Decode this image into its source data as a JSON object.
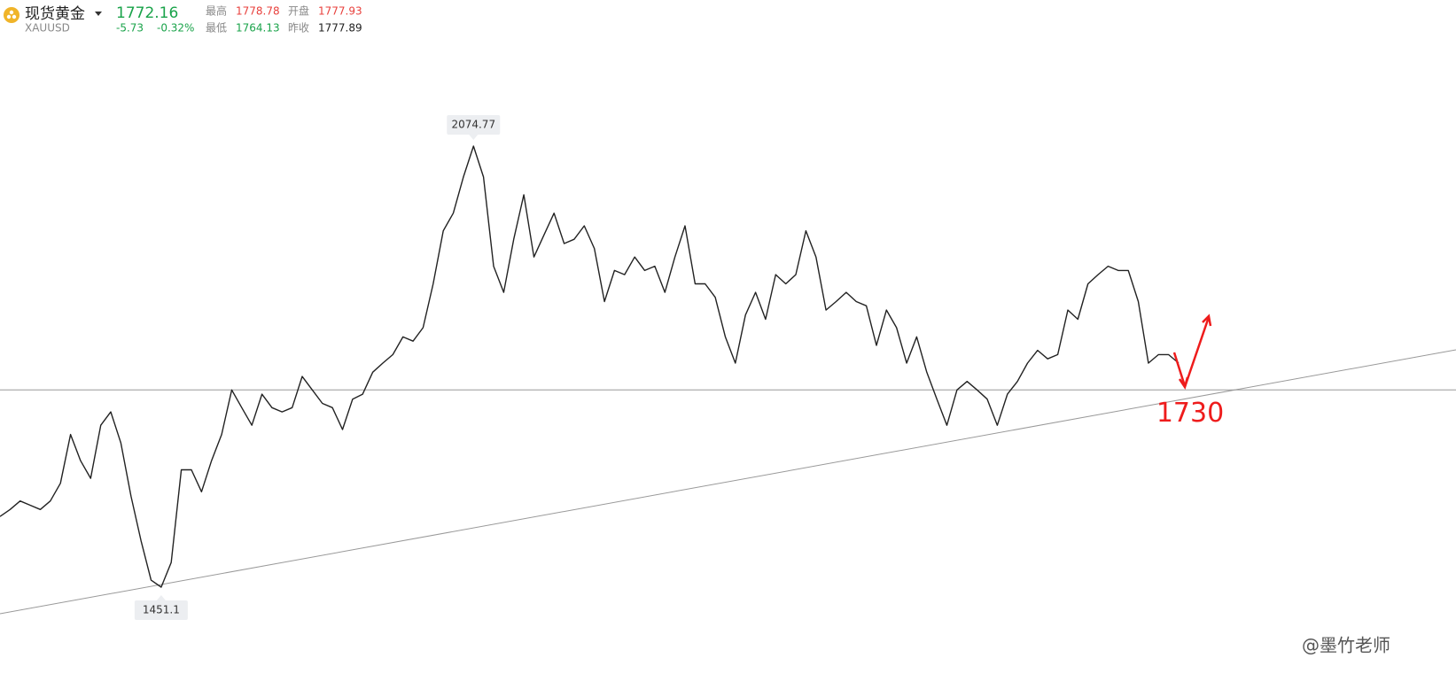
{
  "header": {
    "name": "现货黄金",
    "symbol": "XAUUSD",
    "price": "1772.16",
    "change": "-5.73",
    "change_pct": "-0.32%",
    "high_label": "最高",
    "high": "1778.78",
    "open_label": "开盘",
    "open": "1777.93",
    "low_label": "最低",
    "low": "1764.13",
    "prev_close_label": "昨收",
    "prev_close": "1777.89"
  },
  "chart_data": {
    "type": "line",
    "color": "#222222",
    "ylim": [
      1307.1,
      2281.4
    ],
    "series": [
      {
        "name": "XAUUSD",
        "color": "#222222",
        "values": [
          1551,
          1561,
          1573,
          1567,
          1561,
          1573,
          1598,
          1667,
          1630,
          1605,
          1680,
          1699,
          1655,
          1580,
          1517,
          1461,
          1451.1,
          1486,
          1617,
          1617,
          1586,
          1630,
          1667,
          1730,
          1705,
          1680,
          1724,
          1705,
          1699,
          1705,
          1749,
          1730,
          1711,
          1705,
          1674,
          1717,
          1724,
          1755,
          1768,
          1780,
          1805,
          1799,
          1818,
          1880,
          1955,
          1980,
          2031,
          2074.77,
          2031,
          1905,
          1868,
          1943,
          2006,
          1918,
          1949,
          1980,
          1937,
          1943,
          1962,
          1930,
          1855,
          1899,
          1893,
          1918,
          1899,
          1905,
          1868,
          1918,
          1962,
          1880,
          1880,
          1861,
          1805,
          1768,
          1836,
          1868,
          1830,
          1893,
          1880,
          1893,
          1955,
          1918,
          1843,
          1855,
          1868,
          1855,
          1849,
          1793,
          1843,
          1818,
          1768,
          1805,
          1755,
          1717,
          1680,
          1730,
          1742,
          1730,
          1717,
          1680,
          1724,
          1742,
          1768,
          1786,
          1774,
          1780,
          1843,
          1830,
          1880,
          1893,
          1905,
          1899,
          1899,
          1855,
          1768,
          1780,
          1780,
          1768
        ]
      }
    ],
    "max_label": "2074.77",
    "min_label": "1451.1",
    "level": 1730,
    "level_label": "1730",
    "level_color": "#ee1c1c"
  },
  "watermark": "@墨竹老师"
}
